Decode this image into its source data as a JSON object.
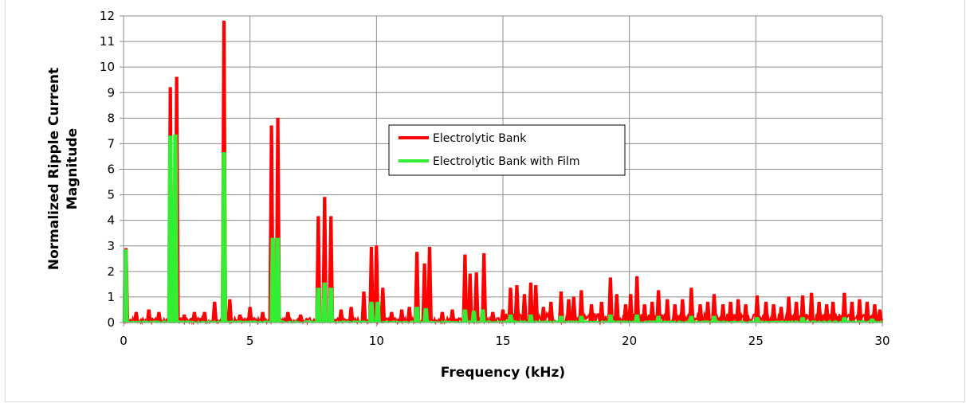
{
  "chart_data": {
    "type": "line",
    "title": "",
    "xlabel": "Frequency (kHz)",
    "ylabel_lines": [
      "Normalized Ripple Current",
      "Magnitude"
    ],
    "xlim": [
      0,
      30
    ],
    "ylim": [
      0,
      12
    ],
    "x_ticks": [
      0,
      5,
      10,
      15,
      20,
      25,
      30
    ],
    "y_ticks": [
      0,
      1,
      2,
      3,
      4,
      5,
      6,
      7,
      8,
      9,
      10,
      11,
      12
    ],
    "grid": true,
    "legend_position": "center",
    "series": [
      {
        "name": "Electrolytic Bank",
        "color": "#ff0000",
        "points": [
          [
            0.1,
            2.9
          ],
          [
            0.5,
            0.4
          ],
          [
            1.0,
            0.5
          ],
          [
            1.4,
            0.4
          ],
          [
            1.85,
            9.2
          ],
          [
            2.1,
            9.6
          ],
          [
            2.4,
            0.3
          ],
          [
            2.8,
            0.4
          ],
          [
            3.2,
            0.4
          ],
          [
            3.6,
            0.8
          ],
          [
            3.97,
            11.8
          ],
          [
            4.2,
            0.9
          ],
          [
            4.6,
            0.3
          ],
          [
            5.0,
            0.6
          ],
          [
            5.5,
            0.4
          ],
          [
            5.85,
            7.7
          ],
          [
            6.1,
            8.0
          ],
          [
            6.5,
            0.4
          ],
          [
            7.0,
            0.3
          ],
          [
            7.7,
            4.15
          ],
          [
            7.95,
            4.9
          ],
          [
            8.2,
            4.15
          ],
          [
            8.6,
            0.5
          ],
          [
            9.0,
            0.6
          ],
          [
            9.5,
            1.2
          ],
          [
            9.8,
            2.95
          ],
          [
            10.0,
            3.0
          ],
          [
            10.25,
            1.35
          ],
          [
            10.6,
            0.4
          ],
          [
            11.0,
            0.5
          ],
          [
            11.3,
            0.6
          ],
          [
            11.6,
            2.75
          ],
          [
            11.9,
            2.3
          ],
          [
            12.1,
            2.95
          ],
          [
            12.6,
            0.4
          ],
          [
            13.0,
            0.5
          ],
          [
            13.5,
            2.65
          ],
          [
            13.7,
            1.9
          ],
          [
            13.95,
            1.95
          ],
          [
            14.25,
            2.7
          ],
          [
            14.6,
            0.4
          ],
          [
            15.0,
            0.5
          ],
          [
            15.3,
            1.35
          ],
          [
            15.55,
            1.45
          ],
          [
            15.85,
            1.1
          ],
          [
            16.1,
            1.55
          ],
          [
            16.3,
            1.45
          ],
          [
            16.6,
            0.6
          ],
          [
            16.9,
            0.8
          ],
          [
            17.3,
            1.2
          ],
          [
            17.6,
            0.9
          ],
          [
            17.8,
            1.0
          ],
          [
            18.1,
            1.25
          ],
          [
            18.5,
            0.7
          ],
          [
            18.9,
            0.8
          ],
          [
            19.25,
            1.75
          ],
          [
            19.5,
            1.1
          ],
          [
            19.85,
            0.7
          ],
          [
            20.05,
            1.1
          ],
          [
            20.3,
            1.8
          ],
          [
            20.6,
            0.7
          ],
          [
            20.9,
            0.8
          ],
          [
            21.15,
            1.25
          ],
          [
            21.5,
            0.9
          ],
          [
            21.8,
            0.7
          ],
          [
            22.1,
            0.9
          ],
          [
            22.45,
            1.35
          ],
          [
            22.8,
            0.7
          ],
          [
            23.1,
            0.8
          ],
          [
            23.35,
            1.1
          ],
          [
            23.7,
            0.7
          ],
          [
            24.0,
            0.8
          ],
          [
            24.3,
            0.9
          ],
          [
            24.6,
            0.7
          ],
          [
            25.05,
            1.05
          ],
          [
            25.4,
            0.8
          ],
          [
            25.7,
            0.7
          ],
          [
            26.0,
            0.6
          ],
          [
            26.3,
            1.0
          ],
          [
            26.6,
            0.8
          ],
          [
            26.85,
            1.05
          ],
          [
            27.2,
            1.15
          ],
          [
            27.5,
            0.8
          ],
          [
            27.8,
            0.7
          ],
          [
            28.05,
            0.8
          ],
          [
            28.5,
            1.15
          ],
          [
            28.8,
            0.8
          ],
          [
            29.1,
            0.9
          ],
          [
            29.4,
            0.8
          ],
          [
            29.7,
            0.7
          ],
          [
            29.9,
            0.5
          ]
        ]
      },
      {
        "name": "Electrolytic Bank with Film",
        "color": "#33ee33",
        "points": [
          [
            0.08,
            2.85
          ],
          [
            1.85,
            7.3
          ],
          [
            2.05,
            7.35
          ],
          [
            3.97,
            6.65
          ],
          [
            5.9,
            3.3
          ],
          [
            6.1,
            3.3
          ],
          [
            7.7,
            1.35
          ],
          [
            7.95,
            1.55
          ],
          [
            8.2,
            1.35
          ],
          [
            9.8,
            0.8
          ],
          [
            10.05,
            0.8
          ],
          [
            11.6,
            0.6
          ],
          [
            11.95,
            0.55
          ],
          [
            13.5,
            0.5
          ],
          [
            13.85,
            0.45
          ],
          [
            14.2,
            0.5
          ],
          [
            15.3,
            0.3
          ],
          [
            16.1,
            0.3
          ],
          [
            17.3,
            0.25
          ],
          [
            18.1,
            0.25
          ],
          [
            19.25,
            0.3
          ],
          [
            20.3,
            0.3
          ],
          [
            21.15,
            0.25
          ],
          [
            22.45,
            0.25
          ],
          [
            23.35,
            0.25
          ],
          [
            25.05,
            0.2
          ],
          [
            26.85,
            0.2
          ],
          [
            28.5,
            0.2
          ],
          [
            29.6,
            0.15
          ]
        ]
      }
    ]
  }
}
